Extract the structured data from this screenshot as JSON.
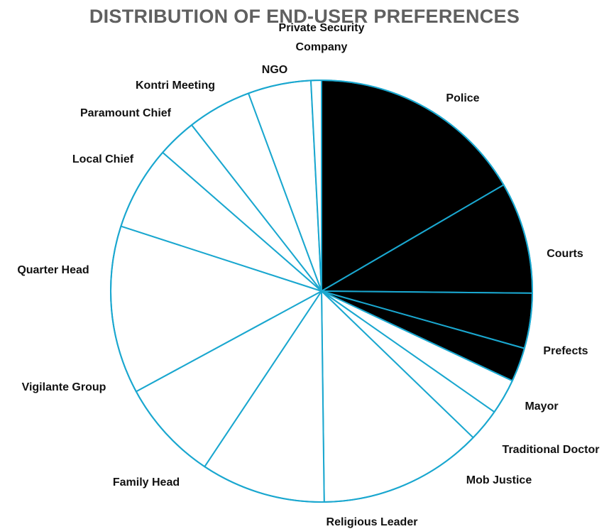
{
  "chart_data": {
    "type": "pie",
    "title": "DISTRIBUTION OF END-USER PREFERENCES",
    "start": "12 o'clock, clockwise",
    "slices": [
      {
        "label": "Police",
        "value": 16.5,
        "fill": "#000000"
      },
      {
        "label": "Courts",
        "value": 8.5,
        "fill": "#000000"
      },
      {
        "label": "Prefects",
        "value": 4.2,
        "fill": "#000000"
      },
      {
        "label": "Mayor",
        "value": 2.6,
        "fill": "#000000"
      },
      {
        "label": "Traditional Doctor",
        "value": 2.7,
        "fill": "#ffffff"
      },
      {
        "label": "Mob Justice",
        "value": 2.5,
        "fill": "#ffffff"
      },
      {
        "label": "Religious Leader",
        "value": 12.5,
        "fill": "#ffffff"
      },
      {
        "label": "Family Head",
        "value": 9.5,
        "fill": "#ffffff"
      },
      {
        "label": "Vigilante Group",
        "value": 7.7,
        "fill": "#ffffff"
      },
      {
        "label": "Quarter Head",
        "value": 12.8,
        "fill": "#ffffff"
      },
      {
        "label": "Local Chief",
        "value": 6.4,
        "fill": "#ffffff"
      },
      {
        "label": "Paramount Chief",
        "value": 3.0,
        "fill": "#ffffff"
      },
      {
        "label": "Kontri Meeting",
        "value": 4.9,
        "fill": "#ffffff"
      },
      {
        "label": "NGO",
        "value": 4.8,
        "fill": "#ffffff"
      },
      {
        "label": "Private Security Company",
        "label_lines": [
          "Private Security",
          "Company"
        ],
        "value": 0.8,
        "fill": "#ffffff"
      }
    ],
    "colors": {
      "edge": "#1aa7cf",
      "title": "#606060",
      "label": "#111111"
    }
  }
}
